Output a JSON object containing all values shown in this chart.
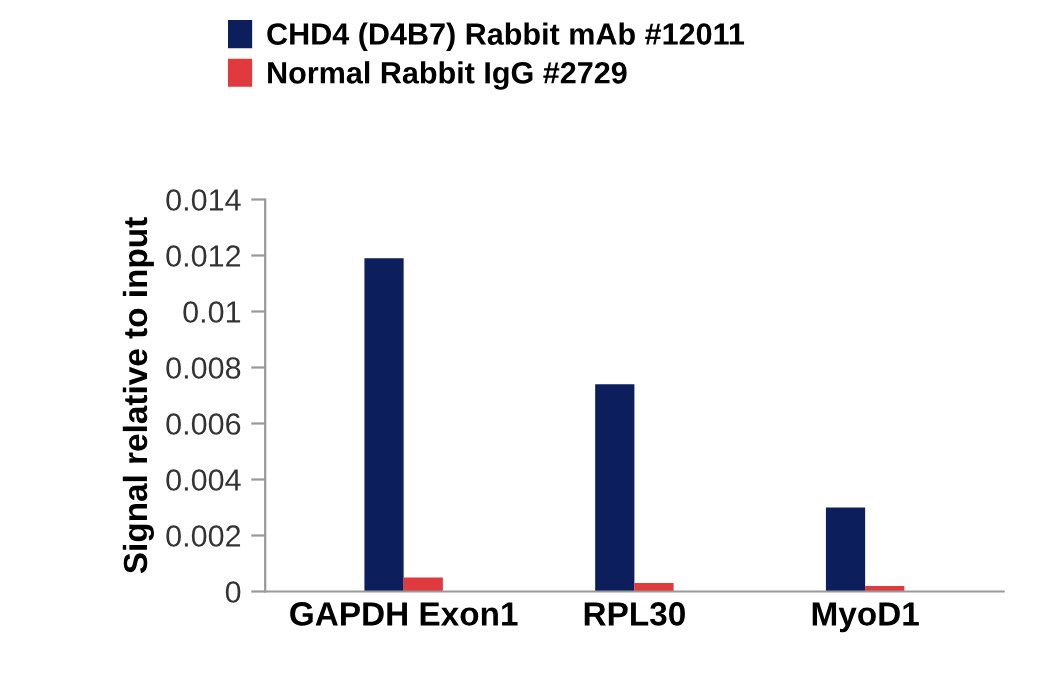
{
  "chart_data": {
    "type": "bar",
    "ylabel": "Signal relative to input",
    "categories": [
      "GAPDH Exon1",
      "RPL30",
      "MyoD1"
    ],
    "series": [
      {
        "name": "CHD4 (D4B7) Rabbit mAb #12011",
        "color": "#0c1f5c",
        "values": [
          0.0119,
          0.0074,
          0.003
        ]
      },
      {
        "name": "Normal Rabbit IgG #2729",
        "color": "#e03a3e",
        "values": [
          0.0005,
          0.0003,
          0.0002
        ]
      }
    ],
    "ylim": [
      0,
      0.014
    ],
    "yticks": [
      0,
      0.002,
      0.004,
      0.006,
      0.008,
      0.01,
      0.012,
      0.014
    ],
    "grid": false,
    "legend": "top left"
  }
}
